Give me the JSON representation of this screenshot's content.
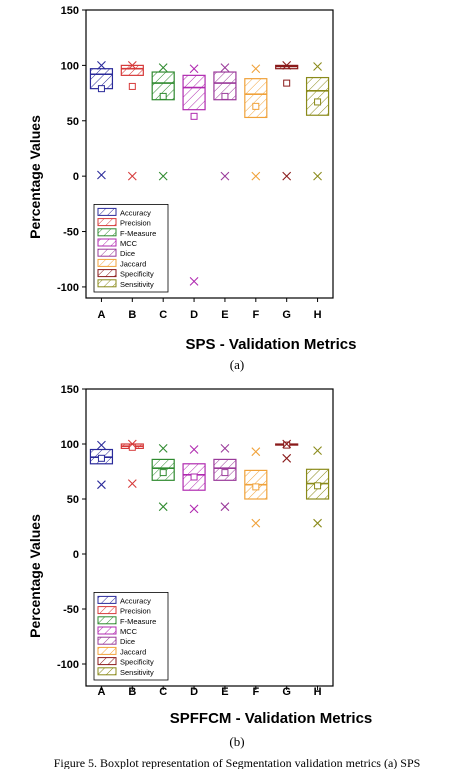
{
  "colors": {
    "Accuracy": "#2a2a9a",
    "Precision": "#d63a3a",
    "F-Measure": "#2f8a2f",
    "MCC": "#b02ab0",
    "Dice": "#9a3a9a",
    "Jaccard": "#f0a23a",
    "Specificity": "#8a1a1a",
    "Sensitivity": "#8a8a1a"
  },
  "caption_text": "Figure 5. Boxplot representation of Segmentation validation metrics (a) SPS",
  "chart_data": [
    {
      "type": "box",
      "panel_label": "(a)",
      "xlabel": "SPS - Validation Metrics",
      "ylabel": "Percentage Values",
      "ylim": [
        -110,
        150
      ],
      "yticks": [
        150,
        100,
        50,
        0,
        -50,
        -100
      ],
      "categories": [
        "A",
        "B",
        "C",
        "D",
        "E",
        "F",
        "G",
        "H"
      ],
      "legend": {
        "placement": "lower-left",
        "entries": [
          "Accuracy",
          "Precision",
          "F-Measure",
          "MCC",
          "Dice",
          "Jaccard",
          "Specificity",
          "Sensitivity"
        ]
      },
      "series": [
        {
          "category": "A",
          "name": "Accuracy",
          "q1": 79,
          "median": 92,
          "q3": 97,
          "mean": 79,
          "max_x": 100,
          "min_x": 1
        },
        {
          "category": "B",
          "name": "Precision",
          "q1": 91,
          "median": 97,
          "q3": 100,
          "mean": 81,
          "max_x": 100,
          "min_x": 0
        },
        {
          "category": "C",
          "name": "F-Measure",
          "q1": 69,
          "median": 84,
          "q3": 94,
          "mean": 72,
          "max_x": 98,
          "min_x": 0
        },
        {
          "category": "D",
          "name": "MCC",
          "q1": 60,
          "median": 80,
          "q3": 91,
          "mean": 54,
          "max_x": 97,
          "min_x": -95
        },
        {
          "category": "E",
          "name": "Dice",
          "q1": 69,
          "median": 84,
          "q3": 94,
          "mean": 72,
          "max_x": 98,
          "min_x": 0
        },
        {
          "category": "F",
          "name": "Jaccard",
          "q1": 53,
          "median": 74,
          "q3": 88,
          "mean": 63,
          "max_x": 97,
          "min_x": 0
        },
        {
          "category": "G",
          "name": "Specificity",
          "q1": 97,
          "median": 99,
          "q3": 100,
          "mean": 84,
          "max_x": 100,
          "min_x": 0
        },
        {
          "category": "H",
          "name": "Sensitivity",
          "q1": 55,
          "median": 77,
          "q3": 89,
          "mean": 67,
          "max_x": 99,
          "min_x": 0
        }
      ]
    },
    {
      "type": "box",
      "panel_label": "(b)",
      "xlabel": "SPFFCM - Validation Metrics",
      "ylabel": "Percentage Values",
      "ylim": [
        -120,
        150
      ],
      "yticks": [
        150,
        100,
        50,
        0,
        -50,
        -100
      ],
      "categories": [
        "A",
        "B",
        "C",
        "D",
        "E",
        "F",
        "G",
        "H"
      ],
      "legend": {
        "placement": "lower-left",
        "entries": [
          "Accuracy",
          "Precision",
          "F-Measure",
          "MCC",
          "Dice",
          "Jaccard",
          "Specificity",
          "Sensitivity"
        ]
      },
      "series": [
        {
          "category": "A",
          "name": "Accuracy",
          "q1": 82,
          "median": 88,
          "q3": 95,
          "mean": 87,
          "max_x": 99,
          "min_x": 63
        },
        {
          "category": "B",
          "name": "Precision",
          "q1": 96,
          "median": 98,
          "q3": 100,
          "mean": 97,
          "max_x": 100,
          "min_x": 64
        },
        {
          "category": "C",
          "name": "F-Measure",
          "q1": 67,
          "median": 78,
          "q3": 86,
          "mean": 74,
          "max_x": 96,
          "min_x": 43
        },
        {
          "category": "D",
          "name": "MCC",
          "q1": 58,
          "median": 72,
          "q3": 82,
          "mean": 70,
          "max_x": 95,
          "min_x": 41
        },
        {
          "category": "E",
          "name": "Dice",
          "q1": 67,
          "median": 78,
          "q3": 86,
          "mean": 74,
          "max_x": 96,
          "min_x": 43
        },
        {
          "category": "F",
          "name": "Jaccard",
          "q1": 50,
          "median": 63,
          "q3": 76,
          "mean": 61,
          "max_x": 93,
          "min_x": 28
        },
        {
          "category": "G",
          "name": "Specificity",
          "q1": 99,
          "median": 99.5,
          "q3": 100,
          "mean": 99,
          "max_x": 100,
          "min_x": 87
        },
        {
          "category": "H",
          "name": "Sensitivity",
          "q1": 50,
          "median": 64,
          "q3": 77,
          "mean": 62,
          "max_x": 94,
          "min_x": 28
        }
      ]
    }
  ]
}
